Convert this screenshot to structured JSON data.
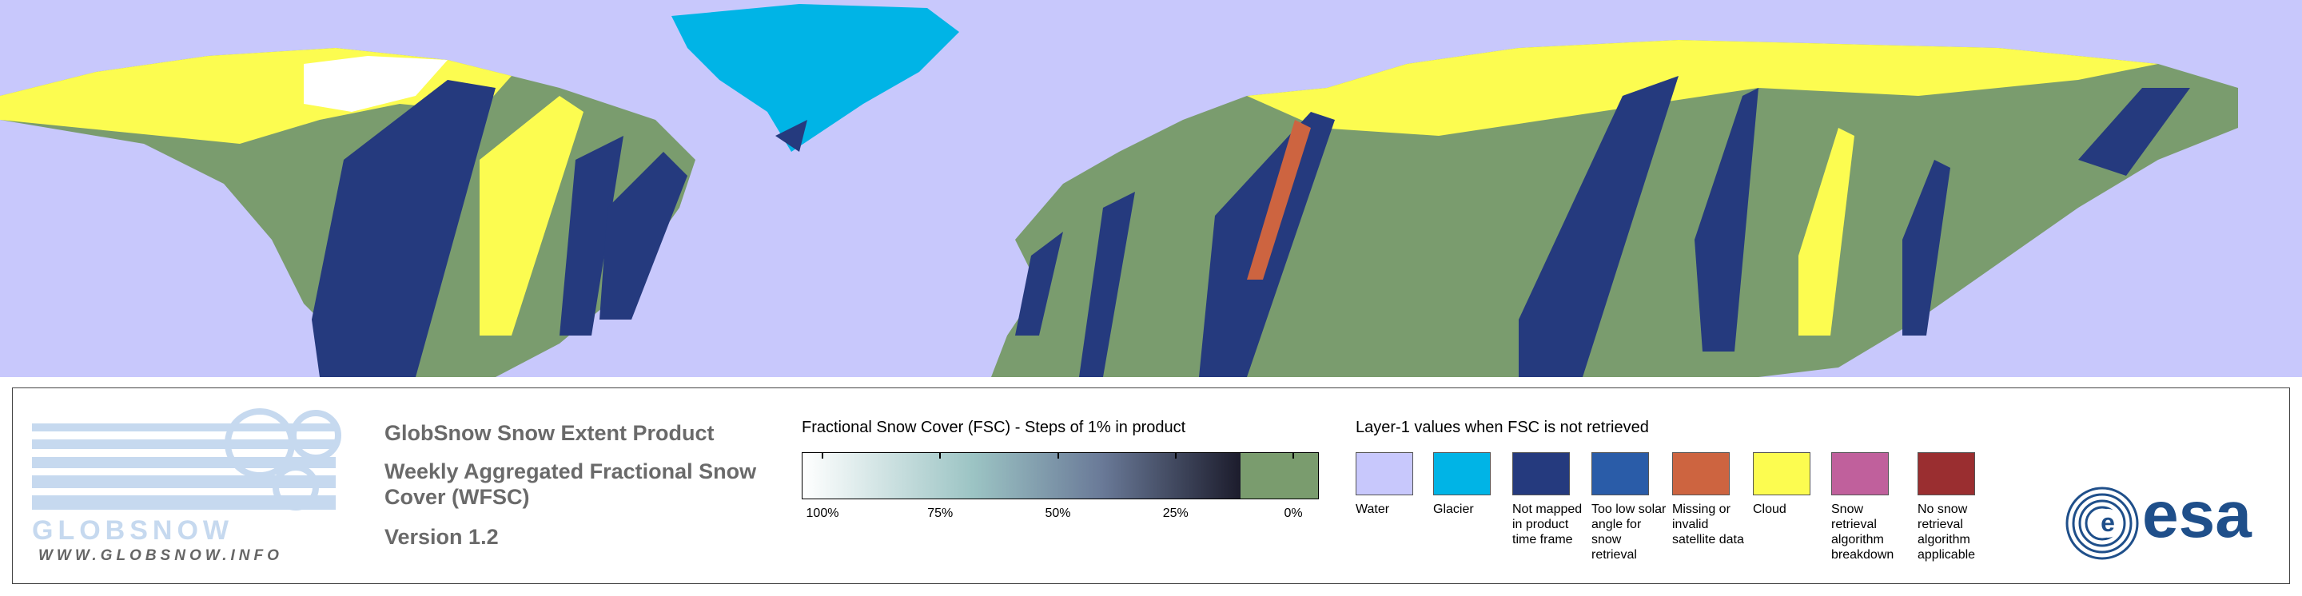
{
  "header": {
    "product": "GlobSnow Snow Extent Product",
    "subtitle": "Weekly Aggregated Fractional Snow Cover (WFSC)",
    "version": "Version 1.2"
  },
  "logo": {
    "name": "GLOBSNOW",
    "url": "WWW.GLOBSNOW.INFO"
  },
  "colorbar": {
    "title": "Fractional Snow Cover (FSC) - Steps of 1% in product",
    "ticks": [
      "100%",
      "75%",
      "50%",
      "25%",
      "0%"
    ]
  },
  "layer1": {
    "title": "Layer-1 values when FSC is not retrieved",
    "items": [
      {
        "label": "Water",
        "color": "#c8c8fc"
      },
      {
        "label": "Glacier",
        "color": "#00b4e6"
      },
      {
        "label": "Not mapped in product time frame",
        "color": "#253a7e"
      },
      {
        "label": "Too low solar angle for snow retrieval",
        "color": "#2a5ca8"
      },
      {
        "label": "Missing or invalid satellite data",
        "color": "#cd6440"
      },
      {
        "label": "Cloud",
        "color": "#fcfc50"
      },
      {
        "label": "Snow retrieval algorithm breakdown",
        "color": "#c0609c"
      },
      {
        "label": "No snow retrieval algorithm applicable",
        "color": "#9a2e30"
      }
    ]
  },
  "agency": "esa"
}
